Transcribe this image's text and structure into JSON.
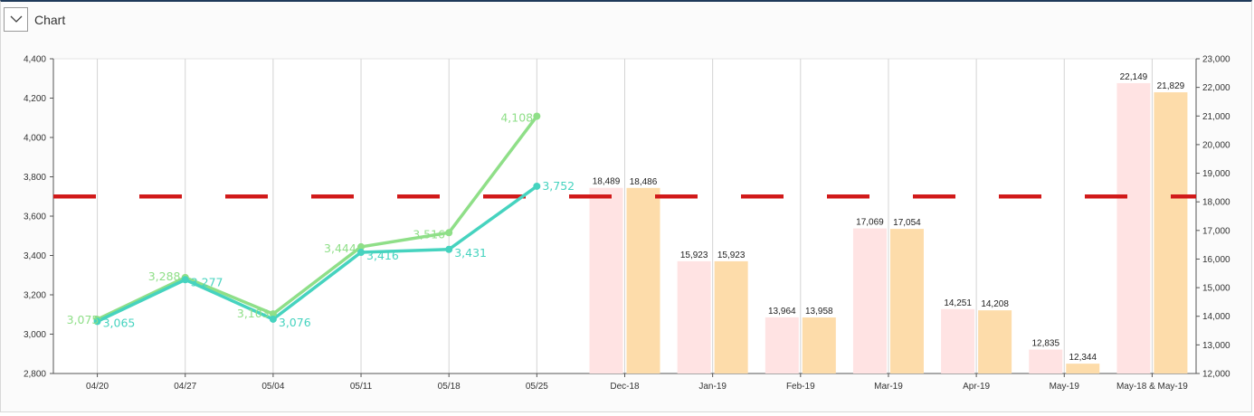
{
  "panel": {
    "title": "Chart"
  },
  "chart_data": {
    "type": "line+bar",
    "left_axis": {
      "ylim": [
        2800,
        4400
      ],
      "ticks": [
        "2,800",
        "3,000",
        "3,200",
        "3,400",
        "3,600",
        "3,800",
        "4,000",
        "4,200",
        "4,400"
      ],
      "tick_values": [
        2800,
        3000,
        3200,
        3400,
        3600,
        3800,
        4000,
        4200,
        4400
      ]
    },
    "right_axis": {
      "ylim": [
        12000,
        23000
      ],
      "ticks": [
        "12,000",
        "13,000",
        "14,000",
        "15,000",
        "16,000",
        "17,000",
        "18,000",
        "19,000",
        "20,000",
        "21,000",
        "22,000",
        "23,000"
      ],
      "tick_values": [
        12000,
        13000,
        14000,
        15000,
        16000,
        17000,
        18000,
        19000,
        20000,
        21000,
        22000,
        23000
      ]
    },
    "categories": [
      "04/20",
      "04/27",
      "05/04",
      "05/11",
      "05/18",
      "05/25",
      "Dec-18",
      "Jan-19",
      "Feb-19",
      "Mar-19",
      "Apr-19",
      "May-19",
      "May-18 & May-19"
    ],
    "line_series": [
      {
        "color": "#8fdf88",
        "points": [
          3075,
          3288,
          3103,
          3444,
          3516,
          4108
        ],
        "labels": [
          "3,075",
          "3,288",
          "3,103",
          "3,444",
          "3,516",
          "4,108"
        ]
      },
      {
        "color": "#46d3bf",
        "points": [
          3065,
          3277,
          3076,
          3416,
          3431,
          3752
        ],
        "labels": [
          "3,065",
          "3,277",
          "3,076",
          "3,416",
          "3,431",
          "3,752"
        ]
      }
    ],
    "bar_series": [
      {
        "color": "#ffe3e3",
        "values": [
          18489,
          15923,
          13964,
          17069,
          14251,
          12835,
          22149
        ],
        "labels": [
          "18,489",
          "15,923",
          "13,964",
          "17,069",
          "14,251",
          "12,835",
          "22,149"
        ]
      },
      {
        "color": "#fddcaa",
        "values": [
          18486,
          15923,
          13958,
          17054,
          14208,
          12344,
          21829
        ],
        "labels": [
          "18,486",
          "15,923",
          "13,958",
          "17,054",
          "14,208",
          "12,344",
          "21,829"
        ]
      }
    ],
    "reference_line": {
      "value": 3700,
      "color": "#d11a1a",
      "style": "dashed"
    },
    "grid": true
  }
}
